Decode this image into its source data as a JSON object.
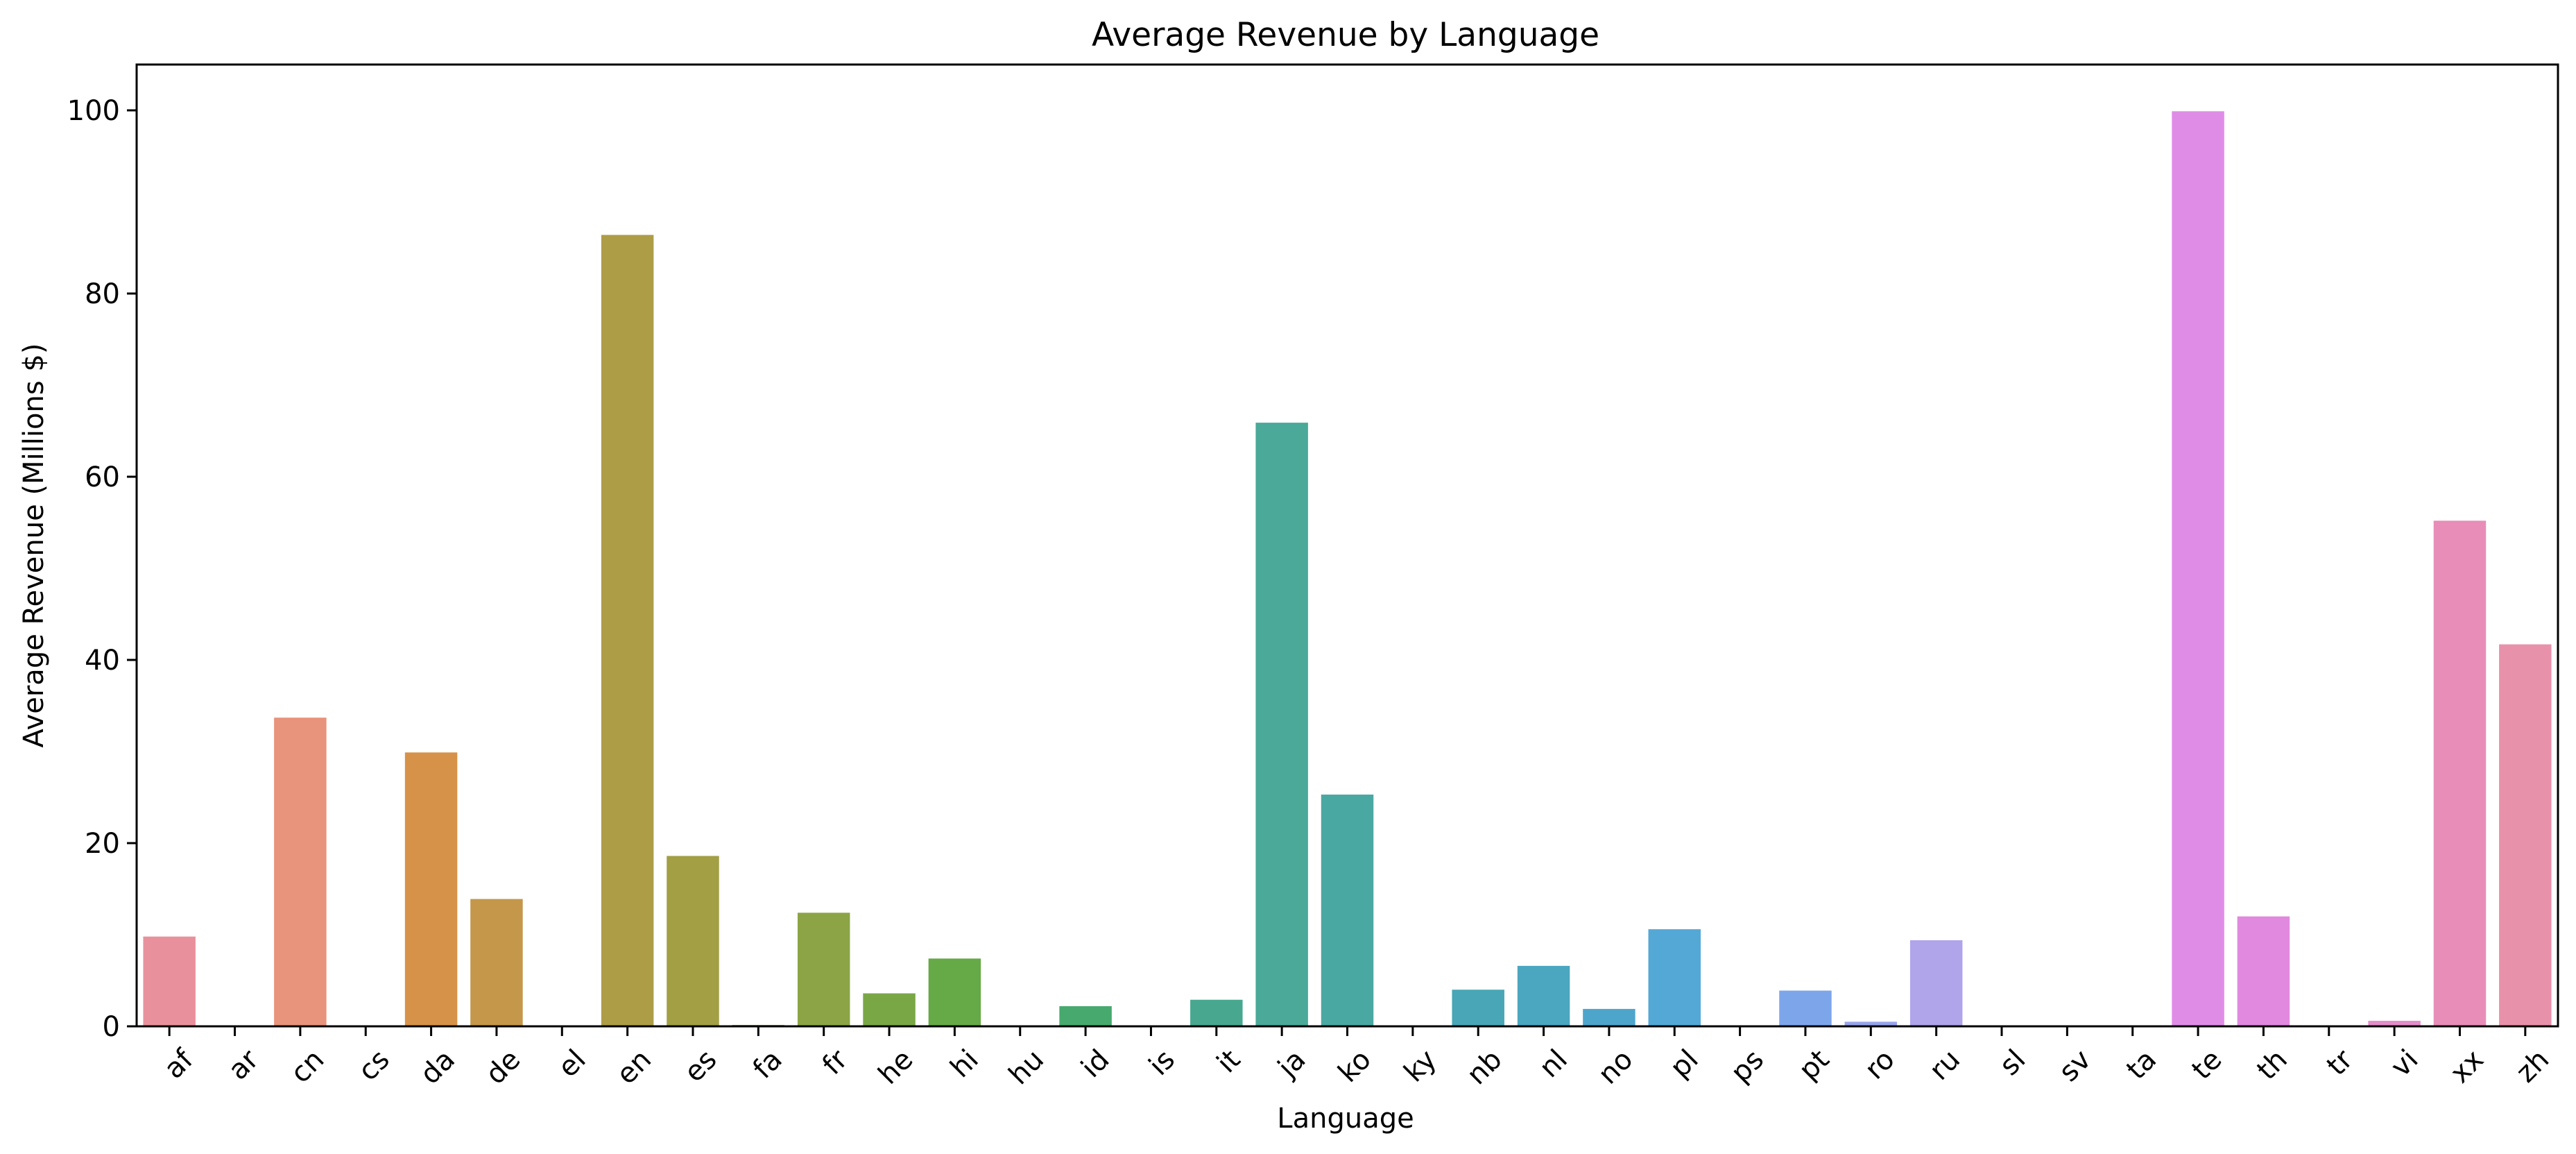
{
  "chart_data": {
    "type": "bar",
    "title": "Average Revenue by Language",
    "xlabel": "Language",
    "ylabel": "Average Revenue (Millions $)",
    "ylim": [
      0,
      105
    ],
    "yticks": [
      0,
      20,
      40,
      60,
      80,
      100
    ],
    "grid": false,
    "legend": "none",
    "categories": [
      "af",
      "ar",
      "cn",
      "cs",
      "da",
      "de",
      "el",
      "en",
      "es",
      "fa",
      "fr",
      "he",
      "hi",
      "hu",
      "id",
      "is",
      "it",
      "ja",
      "ko",
      "ky",
      "nb",
      "nl",
      "no",
      "pl",
      "ps",
      "pt",
      "ro",
      "ru",
      "sl",
      "sv",
      "ta",
      "te",
      "th",
      "tr",
      "vi",
      "xx",
      "zh"
    ],
    "values": [
      9.8,
      0,
      33.7,
      0,
      29.9,
      13.9,
      0,
      86.4,
      18.6,
      0.15,
      12.4,
      3.6,
      7.4,
      0,
      2.2,
      0,
      2.9,
      65.9,
      25.3,
      0,
      4.0,
      6.6,
      1.9,
      10.6,
      0,
      3.9,
      0.5,
      9.4,
      0,
      0,
      0,
      99.9,
      12.0,
      0,
      0.6,
      55.2,
      41.7
    ],
    "colors": [
      "#e8919c",
      "#e78f89",
      "#e8937b",
      "#dd905d",
      "#d69249",
      "#c4974a",
      "#b49a48",
      "#ad9d47",
      "#a29f45",
      "#97a145",
      "#8ca445",
      "#79a746",
      "#66a947",
      "#4ea952",
      "#47a96e",
      "#47a881",
      "#48a78f",
      "#4aa999",
      "#4aa8a2",
      "#49a8aa",
      "#49a6b6",
      "#4ba6c0",
      "#4ea5cc",
      "#54a8d6",
      "#60a6e2",
      "#7da6ea",
      "#97a4ea",
      "#b0a4ea",
      "#c49ce8",
      "#d495e7",
      "#df8ce7",
      "#df8ce7",
      "#e189de",
      "#e68bd7",
      "#e48cc9",
      "#e78db8",
      "#e891ab"
    ]
  }
}
